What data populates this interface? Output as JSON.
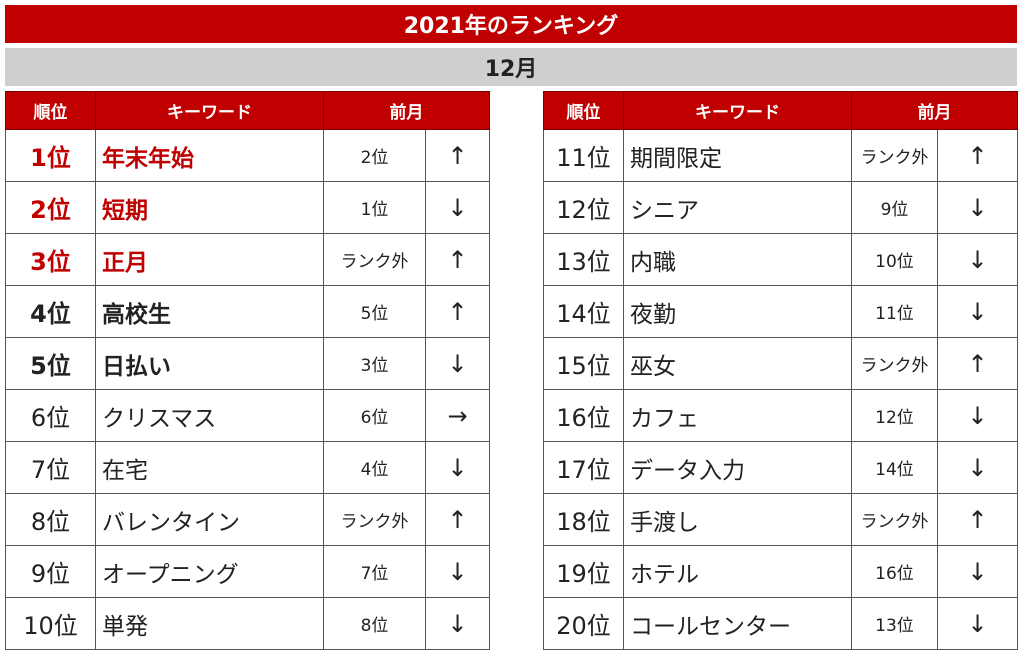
{
  "title": "2021年のランキング",
  "month": "12月",
  "headers": {
    "rank": "順位",
    "keyword": "キーワード",
    "previous": "前月"
  },
  "colors": {
    "header_red": "#c00000",
    "month_gray": "#d0cece",
    "rank_cell": "#fde9c2",
    "arrow_up": "#cc0000",
    "arrow_down": "#1ea6e0",
    "arrow_same": "#9a9a9a"
  },
  "left": [
    {
      "rank": "1位",
      "keyword": "年末年始",
      "previous": "2位",
      "trend": "up",
      "arrow": "↑"
    },
    {
      "rank": "2位",
      "keyword": "短期",
      "previous": "1位",
      "trend": "down",
      "arrow": "↓"
    },
    {
      "rank": "3位",
      "keyword": "正月",
      "previous": "ランク外",
      "trend": "up",
      "arrow": "↑"
    },
    {
      "rank": "4位",
      "keyword": "高校生",
      "previous": "5位",
      "trend": "up",
      "arrow": "↑"
    },
    {
      "rank": "5位",
      "keyword": "日払い",
      "previous": "3位",
      "trend": "down",
      "arrow": "↓"
    },
    {
      "rank": "6位",
      "keyword": "クリスマス",
      "previous": "6位",
      "trend": "same",
      "arrow": "→"
    },
    {
      "rank": "7位",
      "keyword": "在宅",
      "previous": "4位",
      "trend": "down",
      "arrow": "↓"
    },
    {
      "rank": "8位",
      "keyword": "バレンタイン",
      "previous": "ランク外",
      "trend": "up",
      "arrow": "↑"
    },
    {
      "rank": "9位",
      "keyword": "オープニング",
      "previous": "7位",
      "trend": "down",
      "arrow": "↓"
    },
    {
      "rank": "10位",
      "keyword": "単発",
      "previous": "8位",
      "trend": "down",
      "arrow": "↓"
    }
  ],
  "right": [
    {
      "rank": "11位",
      "keyword": "期間限定",
      "previous": "ランク外",
      "trend": "up",
      "arrow": "↑"
    },
    {
      "rank": "12位",
      "keyword": "シニア",
      "previous": "9位",
      "trend": "down",
      "arrow": "↓"
    },
    {
      "rank": "13位",
      "keyword": "内職",
      "previous": "10位",
      "trend": "down",
      "arrow": "↓"
    },
    {
      "rank": "14位",
      "keyword": "夜勤",
      "previous": "11位",
      "trend": "down",
      "arrow": "↓"
    },
    {
      "rank": "15位",
      "keyword": "巫女",
      "previous": "ランク外",
      "trend": "up",
      "arrow": "↑"
    },
    {
      "rank": "16位",
      "keyword": "カフェ",
      "previous": "12位",
      "trend": "down",
      "arrow": "↓"
    },
    {
      "rank": "17位",
      "keyword": "データ入力",
      "previous": "14位",
      "trend": "down",
      "arrow": "↓"
    },
    {
      "rank": "18位",
      "keyword": "手渡し",
      "previous": "ランク外",
      "trend": "up",
      "arrow": "↑"
    },
    {
      "rank": "19位",
      "keyword": "ホテル",
      "previous": "16位",
      "trend": "down",
      "arrow": "↓"
    },
    {
      "rank": "20位",
      "keyword": "コールセンター",
      "previous": "13位",
      "trend": "down",
      "arrow": "↓"
    }
  ]
}
